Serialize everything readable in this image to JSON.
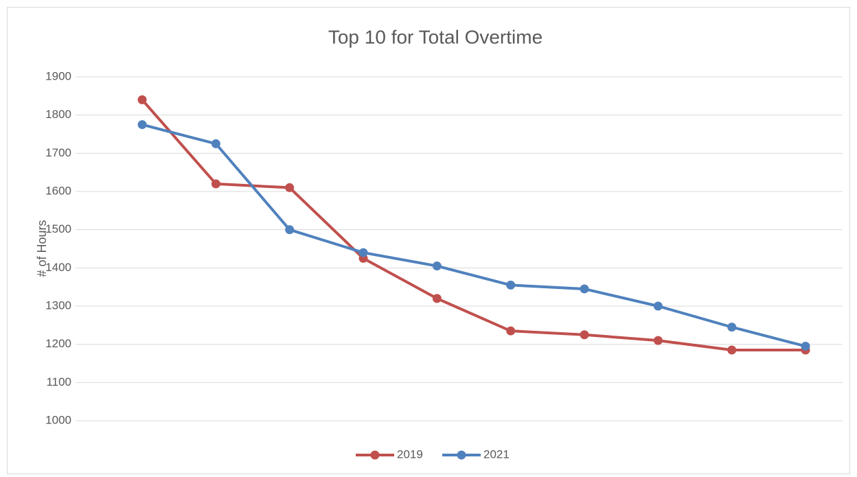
{
  "chart_data": {
    "type": "line",
    "title": "Top 10 for Total Overtime",
    "y_label": "# of Hours",
    "categories": [
      null,
      null,
      null,
      null,
      null,
      null,
      null,
      null,
      null,
      null
    ],
    "series": [
      {
        "name": "2019",
        "color": "#c0504d",
        "values": [
          1840,
          1620,
          1610,
          1425,
          1320,
          1235,
          1225,
          1210,
          1185,
          1185
        ]
      },
      {
        "name": "2021",
        "color": "#4f81bd",
        "values": [
          1775,
          1725,
          1500,
          1440,
          1405,
          1355,
          1345,
          1300,
          1245,
          1195
        ]
      }
    ],
    "ylim": [
      1000,
      1900
    ],
    "yticks": [
      1000,
      1100,
      1200,
      1300,
      1400,
      1500,
      1600,
      1700,
      1800,
      1900
    ],
    "grid": true,
    "legend": "bottom"
  }
}
